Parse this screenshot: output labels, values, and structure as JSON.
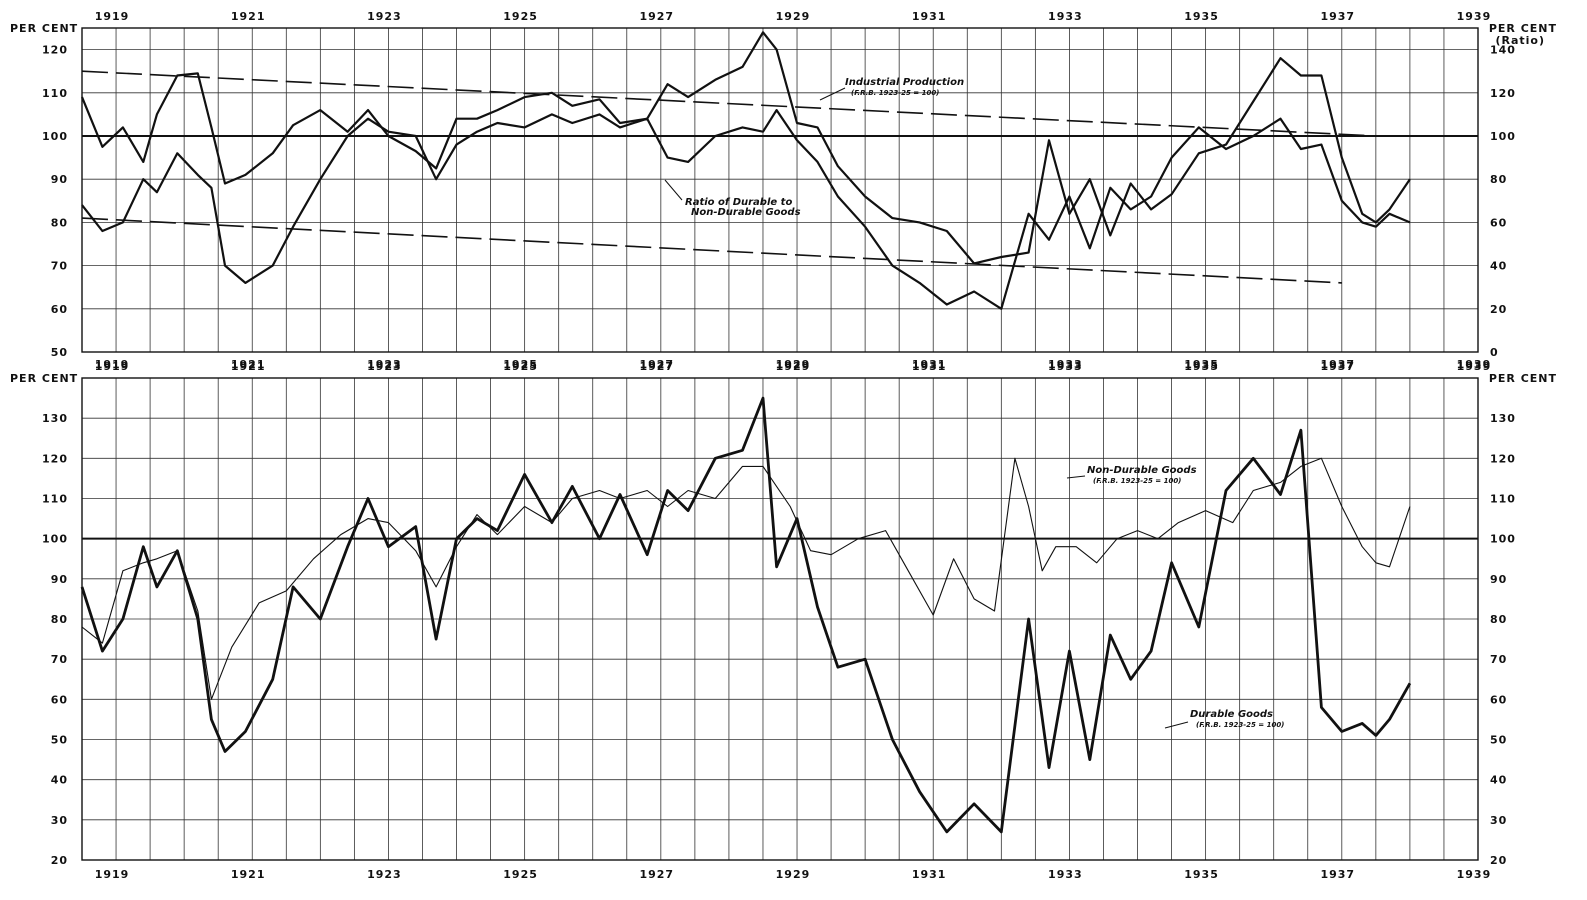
{
  "chart_data": [
    {
      "type": "line",
      "x_ticks": [
        "1919",
        "1921",
        "1923",
        "1925",
        "1927",
        "1929",
        "1931",
        "1933",
        "1935",
        "1937",
        "1939"
      ],
      "left_axis": {
        "label": "PER CENT",
        "ylim": [
          50,
          125
        ],
        "ticks": [
          50,
          60,
          70,
          80,
          90,
          100,
          110,
          120
        ]
      },
      "right_axis": {
        "label": "PER CENT",
        "sublabel": "(Ratio)",
        "ylim": [
          0,
          150
        ],
        "ticks": [
          0,
          20,
          40,
          60,
          80,
          100,
          120,
          140
        ]
      },
      "grid": true,
      "series": [
        {
          "name": "Industrial Production",
          "note": "(F.R.B. 1923-25 = 100)",
          "axis": "left",
          "x": [
            1919.0,
            1919.3,
            1919.6,
            1919.9,
            1920.1,
            1920.4,
            1920.7,
            1920.9,
            1921.1,
            1921.4,
            1921.8,
            1922.1,
            1922.5,
            1922.9,
            1923.2,
            1923.5,
            1923.9,
            1924.2,
            1924.5,
            1924.8,
            1925.1,
            1925.5,
            1925.9,
            1926.2,
            1926.6,
            1926.9,
            1927.3,
            1927.6,
            1927.9,
            1928.3,
            1928.7,
            1929.0,
            1929.2,
            1929.5,
            1929.8,
            1930.1,
            1930.5,
            1930.9,
            1931.3,
            1931.7,
            1932.1,
            1932.5,
            1932.9,
            1933.2,
            1933.5,
            1933.8,
            1934.1,
            1934.4,
            1934.7,
            1935.0,
            1935.4,
            1935.8,
            1936.2,
            1936.6,
            1936.9,
            1937.2,
            1937.5,
            1937.8,
            1938.0,
            1938.2,
            1938.5
          ],
          "y": [
            84,
            78,
            80,
            90,
            87,
            96,
            91,
            88,
            70,
            66,
            70,
            79,
            90,
            100,
            104,
            101,
            100,
            90,
            98,
            101,
            103,
            102,
            105,
            103,
            105,
            102,
            104,
            95,
            94,
            100,
            102,
            101,
            106,
            99,
            94,
            86,
            79,
            70,
            66,
            61,
            64,
            60,
            82,
            76,
            86,
            74,
            88,
            83,
            86,
            95,
            102,
            97,
            100,
            104,
            97,
            98,
            85,
            80,
            79,
            82,
            80
          ]
        },
        {
          "name": "Ratio of Durable to Non-Durable Goods",
          "axis": "right",
          "x": [
            1919.0,
            1919.3,
            1919.6,
            1919.9,
            1920.1,
            1920.4,
            1920.7,
            1920.9,
            1921.1,
            1921.4,
            1921.8,
            1922.1,
            1922.5,
            1922.9,
            1923.2,
            1923.5,
            1923.9,
            1924.2,
            1924.5,
            1924.8,
            1925.1,
            1925.5,
            1925.9,
            1926.2,
            1926.6,
            1926.9,
            1927.3,
            1927.6,
            1927.9,
            1928.3,
            1928.7,
            1929.0,
            1929.2,
            1929.5,
            1929.8,
            1930.1,
            1930.5,
            1930.9,
            1931.3,
            1931.7,
            1932.1,
            1932.5,
            1932.9,
            1933.2,
            1933.5,
            1933.8,
            1934.1,
            1934.4,
            1934.7,
            1935.0,
            1935.4,
            1935.8,
            1936.2,
            1936.6,
            1936.9,
            1937.2,
            1937.5,
            1937.8,
            1938.0,
            1938.2,
            1938.5
          ],
          "y": [
            118,
            95,
            104,
            88,
            110,
            128,
            129,
            104,
            78,
            82,
            92,
            105,
            112,
            102,
            112,
            100,
            93,
            85,
            108,
            108,
            112,
            118,
            120,
            114,
            117,
            106,
            108,
            124,
            118,
            126,
            132,
            148,
            140,
            106,
            104,
            86,
            72,
            62,
            60,
            56,
            41,
            44,
            46,
            98,
            64,
            80,
            54,
            78,
            66,
            73,
            92,
            96,
            116,
            136,
            128,
            128,
            90,
            64,
            60,
            66,
            80
          ]
        },
        {
          "name": "Industrial Production trend",
          "axis": "left",
          "dashed": true,
          "x": [
            1919.0,
            1938.0
          ],
          "y": [
            115,
            100
          ]
        },
        {
          "name": "Ratio trend",
          "axis": "right",
          "dashed": true,
          "x": [
            1919.0,
            1937.5
          ],
          "y": [
            62,
            32
          ]
        }
      ],
      "annotations": [
        {
          "text": "Industrial Production",
          "subtext": "(F.R.B. 1923-25 = 100)"
        },
        {
          "text": "Ratio of Durable to",
          "subtext": "Non-Durable Goods"
        }
      ]
    },
    {
      "type": "line",
      "x_ticks": [
        "1919",
        "1921",
        "1923",
        "1925",
        "1927",
        "1929",
        "1931",
        "1933",
        "1935",
        "1937",
        "1939"
      ],
      "left_axis": {
        "label": "PER CENT",
        "ylim": [
          20,
          140
        ],
        "ticks": [
          20,
          30,
          40,
          50,
          60,
          70,
          80,
          90,
          100,
          110,
          120,
          130
        ]
      },
      "right_axis": {
        "label": "PER CENT",
        "ylim": [
          20,
          140
        ],
        "ticks": [
          20,
          30,
          40,
          50,
          60,
          70,
          80,
          90,
          100,
          110,
          120,
          130
        ]
      },
      "grid": true,
      "series": [
        {
          "name": "Non-Durable Goods",
          "note": "(F.R.B. 1923-25 = 100)",
          "style": "thin",
          "x": [
            1919.0,
            1919.3,
            1919.6,
            1919.9,
            1920.1,
            1920.4,
            1920.7,
            1920.9,
            1921.2,
            1921.6,
            1922.0,
            1922.4,
            1922.8,
            1923.2,
            1923.5,
            1923.9,
            1924.2,
            1924.5,
            1924.8,
            1925.1,
            1925.5,
            1925.9,
            1926.2,
            1926.6,
            1926.9,
            1927.3,
            1927.6,
            1927.9,
            1928.3,
            1928.7,
            1929.0,
            1929.4,
            1929.7,
            1930.0,
            1930.4,
            1930.8,
            1931.1,
            1931.5,
            1931.8,
            1932.1,
            1932.4,
            1932.7,
            1932.9,
            1933.1,
            1933.3,
            1933.6,
            1933.9,
            1934.2,
            1934.5,
            1934.8,
            1935.1,
            1935.5,
            1935.9,
            1936.2,
            1936.6,
            1936.9,
            1937.2,
            1937.5,
            1937.8,
            1938.0,
            1938.2,
            1938.5
          ],
          "y": [
            78,
            74,
            92,
            94,
            95,
            97,
            82,
            60,
            73,
            84,
            87,
            95,
            101,
            105,
            104,
            97,
            88,
            98,
            106,
            101,
            108,
            104,
            110,
            112,
            110,
            112,
            108,
            112,
            110,
            118,
            118,
            108,
            97,
            96,
            100,
            102,
            93,
            81,
            95,
            85,
            82,
            120,
            108,
            92,
            98,
            98,
            94,
            100,
            102,
            100,
            104,
            107,
            104,
            112,
            114,
            118,
            120,
            108,
            98,
            94,
            93,
            108
          ]
        },
        {
          "name": "Durable Goods",
          "note": "(F.R.B. 1923-25 = 100)",
          "style": "thick",
          "x": [
            1919.0,
            1919.3,
            1919.6,
            1919.9,
            1920.1,
            1920.4,
            1920.7,
            1920.9,
            1921.1,
            1921.4,
            1921.8,
            1922.1,
            1922.5,
            1922.9,
            1923.2,
            1923.5,
            1923.9,
            1924.2,
            1924.5,
            1924.8,
            1925.1,
            1925.5,
            1925.9,
            1926.2,
            1926.6,
            1926.9,
            1927.3,
            1927.6,
            1927.9,
            1928.3,
            1928.7,
            1929.0,
            1929.2,
            1929.5,
            1929.8,
            1930.1,
            1930.5,
            1930.9,
            1931.3,
            1931.7,
            1932.1,
            1932.5,
            1932.9,
            1933.2,
            1933.5,
            1933.8,
            1934.1,
            1934.4,
            1934.7,
            1935.0,
            1935.4,
            1935.8,
            1936.2,
            1936.6,
            1936.9,
            1937.2,
            1937.5,
            1937.8,
            1938.0,
            1938.2,
            1938.5
          ],
          "y": [
            88,
            72,
            80,
            98,
            88,
            97,
            80,
            55,
            47,
            52,
            65,
            88,
            80,
            98,
            110,
            98,
            103,
            75,
            100,
            105,
            102,
            116,
            104,
            113,
            100,
            111,
            96,
            112,
            107,
            120,
            122,
            135,
            93,
            105,
            83,
            68,
            70,
            50,
            37,
            27,
            34,
            27,
            80,
            43,
            72,
            45,
            76,
            65,
            72,
            94,
            78,
            112,
            120,
            111,
            127,
            58,
            52,
            54,
            51,
            55,
            64
          ]
        }
      ],
      "annotations": [
        {
          "text": "Non-Durable Goods",
          "subtext": "(F.R.B. 1923-25 = 100)"
        },
        {
          "text": "Durable Goods",
          "subtext": "(F.R.B. 1923-25 = 100)"
        }
      ]
    }
  ]
}
